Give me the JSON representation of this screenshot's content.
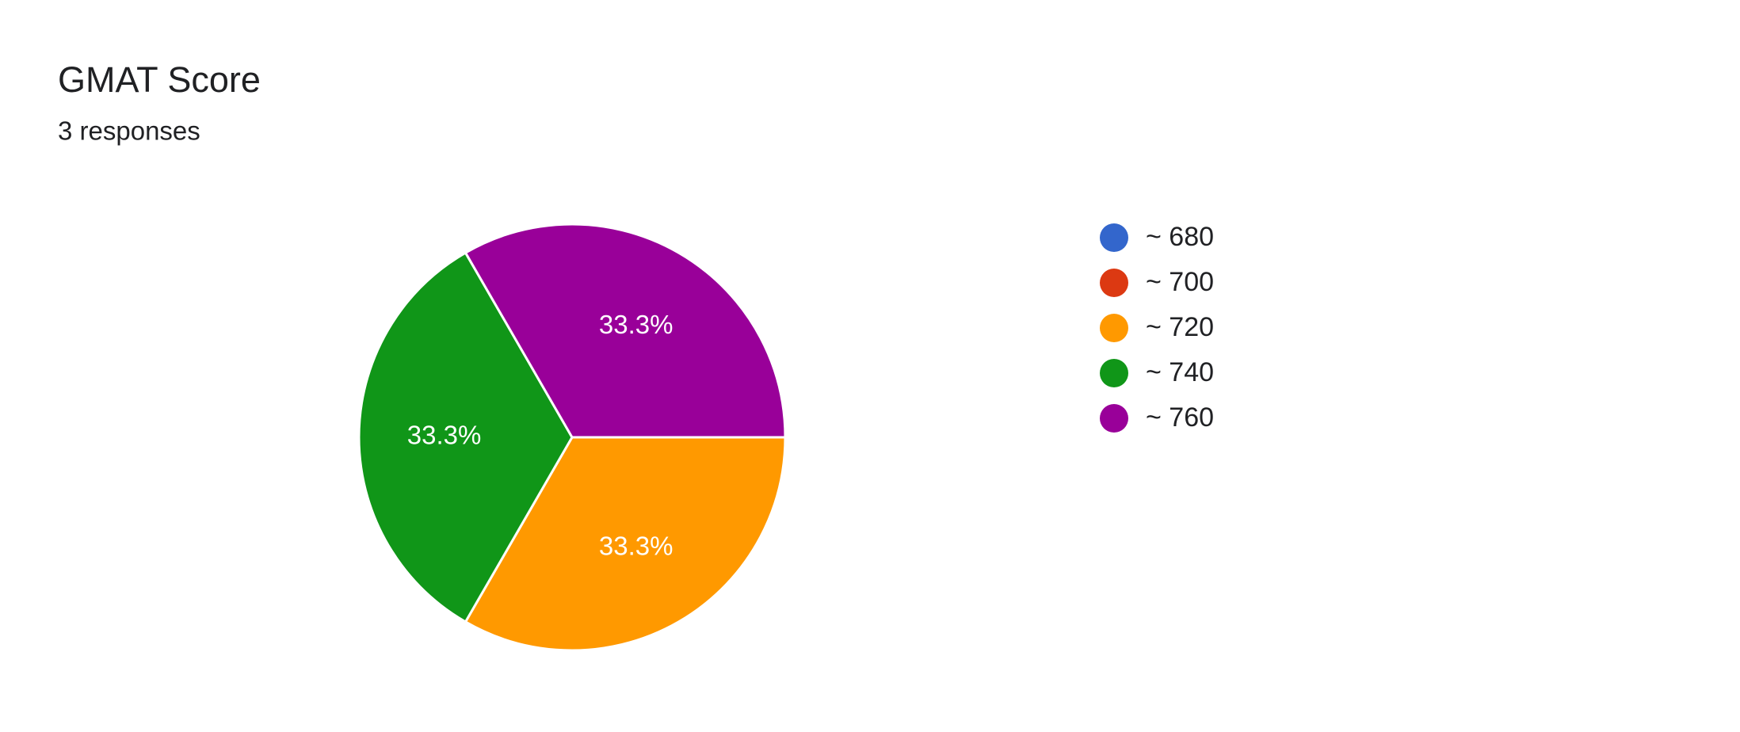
{
  "chart_data": {
    "type": "pie",
    "title": "GMAT Score",
    "subtitle": "3 responses",
    "categories": [
      "~ 680",
      "~ 700",
      "~ 720",
      "~ 740",
      "~ 760"
    ],
    "values": [
      0,
      0,
      33.3,
      33.3,
      33.3
    ],
    "value_labels": [
      null,
      null,
      "33.3%",
      "33.3%",
      "33.3%"
    ],
    "colors": [
      "#3366cc",
      "#dc3912",
      "#ff9900",
      "#109618",
      "#990099"
    ],
    "legend": "right"
  }
}
